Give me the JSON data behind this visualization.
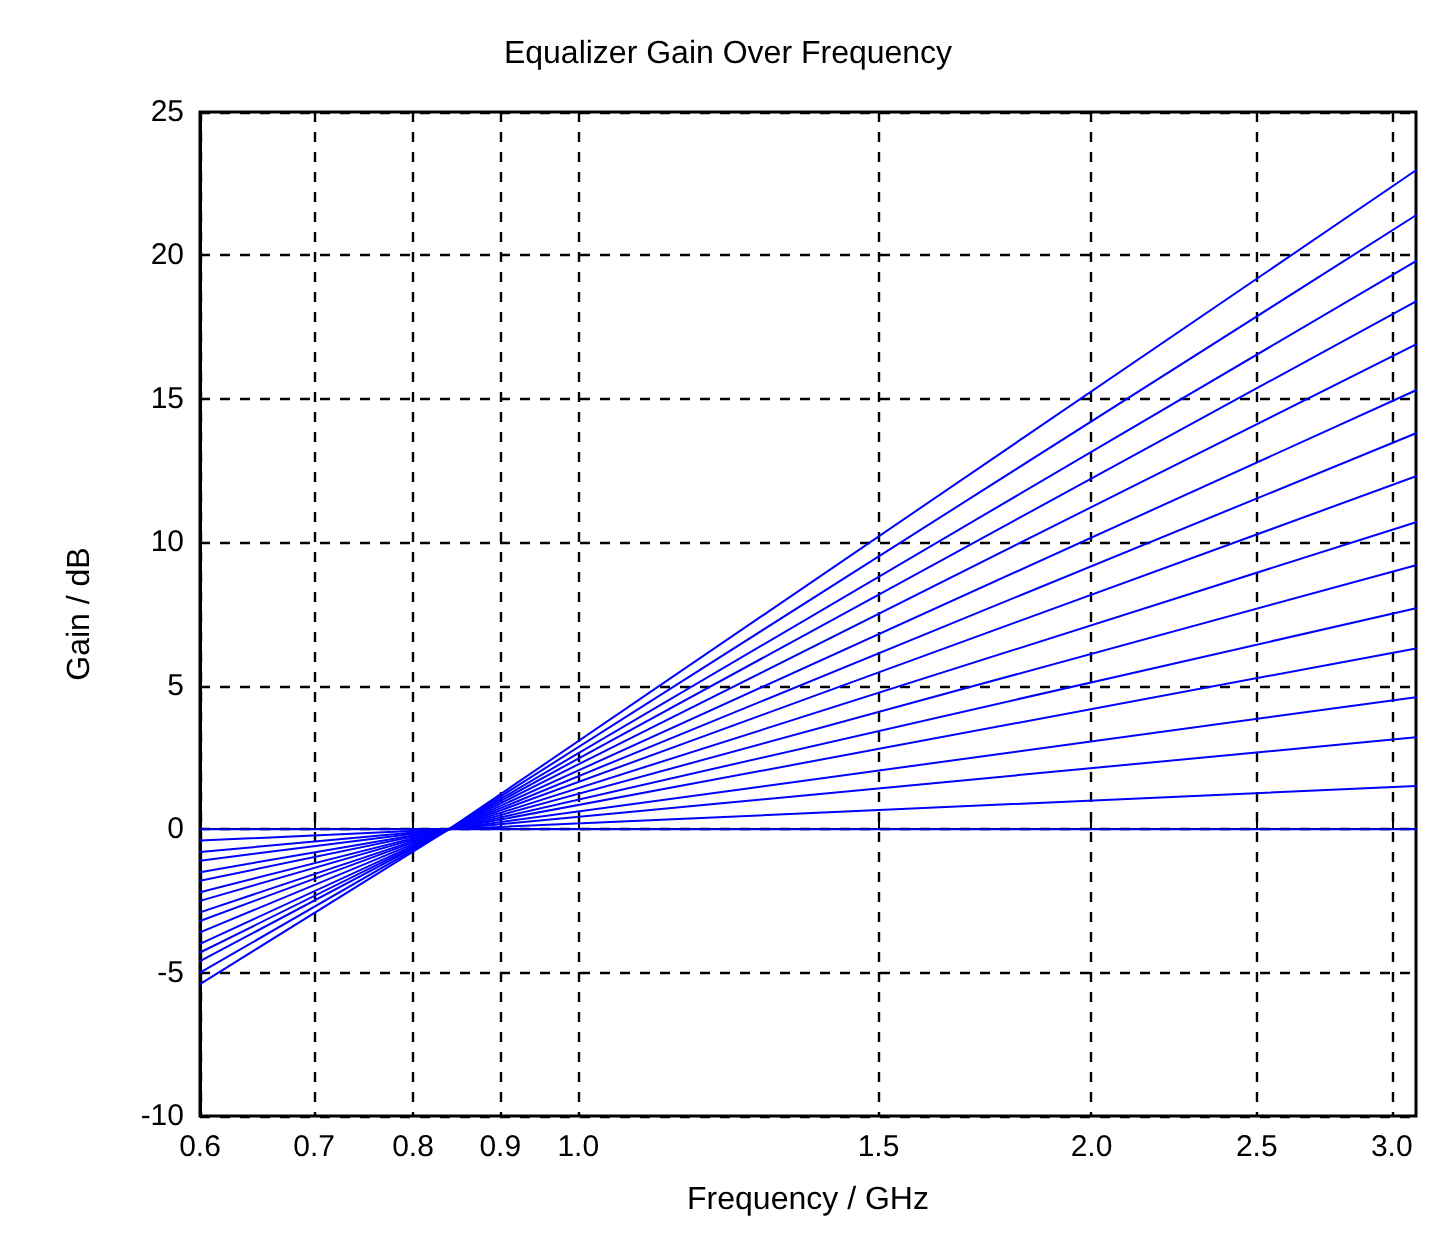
{
  "chart_data": {
    "type": "line",
    "title": "Equalizer Gain Over Frequency",
    "xlabel": "Frequency / GHz",
    "ylabel": "Gain / dB",
    "log": "x",
    "xlim": [
      0.6,
      3.1
    ],
    "xticks": [
      0.6,
      0.7,
      0.8,
      0.9,
      {
        "value": 1,
        "label": "1.0"
      },
      1.5,
      {
        "value": 2,
        "label": "2.0"
      },
      2.5,
      {
        "value": 3,
        "label": "3.0"
      }
    ],
    "ylim": [
      -10,
      25
    ],
    "yticks": [
      -10,
      -5,
      0,
      5,
      10,
      15,
      20,
      25
    ],
    "grid": true,
    "marker": "none",
    "line_style": "solid",
    "x": [
      0.6,
      0.84,
      3.1
    ],
    "series": [
      {
        "color": "#0000ff",
        "values": [
          -5.4,
          0,
          22.97
        ]
      },
      {
        "color": "#0000ff",
        "values": [
          -5.0,
          0,
          21.4
        ]
      },
      {
        "color": "#0000ff",
        "values": [
          -4.6,
          0,
          19.8
        ]
      },
      {
        "color": "#0000ff",
        "values": [
          -4.3,
          0,
          18.4
        ]
      },
      {
        "color": "#0000ff",
        "values": [
          -4.0,
          0,
          16.9
        ]
      },
      {
        "color": "#0000ff",
        "values": [
          -3.6,
          0,
          15.3
        ]
      },
      {
        "color": "#0000ff",
        "values": [
          -3.2,
          0,
          13.8
        ]
      },
      {
        "color": "#0000ff",
        "values": [
          -2.9,
          0,
          12.3
        ]
      },
      {
        "color": "#0000ff",
        "values": [
          -2.5,
          0,
          10.7
        ]
      },
      {
        "color": "#0000ff",
        "values": [
          -2.2,
          0,
          9.2
        ]
      },
      {
        "color": "#0000ff",
        "values": [
          -1.8,
          0,
          7.7
        ]
      },
      {
        "color": "#0000ff",
        "values": [
          -1.5,
          0,
          6.3
        ]
      },
      {
        "color": "#0000ff",
        "values": [
          -1.1,
          0,
          4.6
        ]
      },
      {
        "color": "#0000ff",
        "values": [
          -0.8,
          0,
          3.2
        ]
      },
      {
        "color": "#0000ff",
        "values": [
          -0.4,
          0,
          1.5
        ]
      },
      {
        "color": "#0000ff",
        "values": [
          0,
          0,
          0
        ]
      }
    ]
  }
}
